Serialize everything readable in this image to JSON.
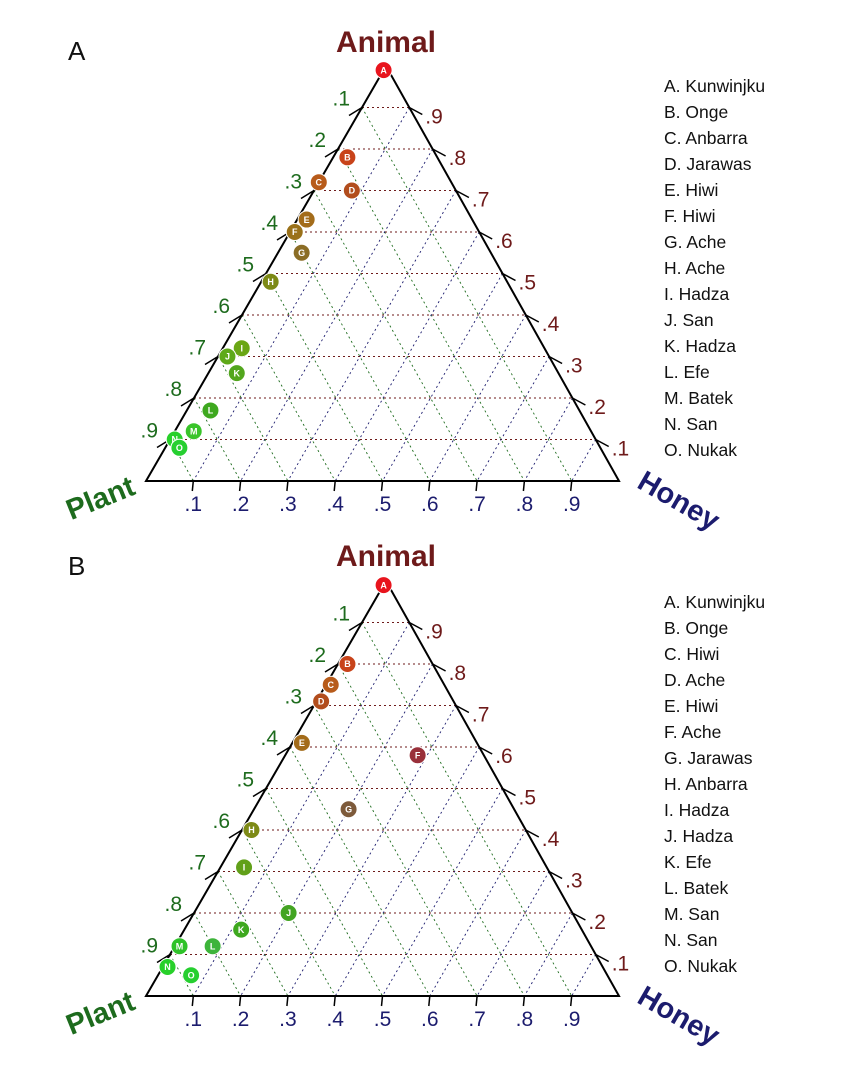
{
  "colors": {
    "animal": "#6e1a1a",
    "plant": "#1d6b1d",
    "honey": "#1c1c6e"
  },
  "chart_data": [
    {
      "type": "ternary-scatter",
      "panel": "A",
      "vertex_labels": {
        "top": "Animal",
        "left": "Plant",
        "right": "Honey"
      },
      "axes": {
        "animal_ticks": [
          ".9",
          ".8",
          ".7",
          ".6",
          ".5",
          ".4",
          ".3",
          ".2",
          ".1"
        ],
        "plant_ticks": [
          ".1",
          ".2",
          ".3",
          ".4",
          ".5",
          ".6",
          ".7",
          ".8",
          ".9"
        ],
        "honey_ticks": [
          ".1",
          ".2",
          ".3",
          ".4",
          ".5",
          ".6",
          ".7",
          ".8",
          ".9"
        ]
      },
      "grid": true,
      "points": [
        {
          "id": "A",
          "name": "Kunwinjku",
          "animal": 0.99,
          "plant": 0.01,
          "honey": 0.0,
          "color": "#e8141d"
        },
        {
          "id": "B",
          "name": "Onge",
          "animal": 0.78,
          "plant": 0.19,
          "honey": 0.03,
          "color": "#c8431a"
        },
        {
          "id": "C",
          "name": "Anbarra",
          "animal": 0.72,
          "plant": 0.28,
          "honey": 0.0,
          "color": "#b75b1a"
        },
        {
          "id": "D",
          "name": "Jarawas",
          "animal": 0.7,
          "plant": 0.22,
          "honey": 0.08,
          "color": "#b24d1d"
        },
        {
          "id": "E",
          "name": "Hiwi",
          "animal": 0.63,
          "plant": 0.35,
          "honey": 0.02,
          "color": "#a36c1a"
        },
        {
          "id": "F",
          "name": "Hiwi",
          "animal": 0.6,
          "plant": 0.39,
          "honey": 0.01,
          "color": "#9a7119"
        },
        {
          "id": "G",
          "name": "Ache",
          "animal": 0.55,
          "plant": 0.4,
          "honey": 0.05,
          "color": "#8b6d25"
        },
        {
          "id": "H",
          "name": "Ache",
          "animal": 0.48,
          "plant": 0.5,
          "honey": 0.02,
          "color": "#7d8a16"
        },
        {
          "id": "I",
          "name": "Hadza",
          "animal": 0.32,
          "plant": 0.64,
          "honey": 0.04,
          "color": "#6aa614"
        },
        {
          "id": "J",
          "name": "San",
          "animal": 0.3,
          "plant": 0.68,
          "honey": 0.02,
          "color": "#5ea918"
        },
        {
          "id": "K",
          "name": "Hadza",
          "animal": 0.26,
          "plant": 0.68,
          "honey": 0.06,
          "color": "#52a61d"
        },
        {
          "id": "L",
          "name": "Efe",
          "animal": 0.17,
          "plant": 0.78,
          "honey": 0.05,
          "color": "#3ea81f"
        },
        {
          "id": "M",
          "name": "Batek",
          "animal": 0.12,
          "plant": 0.84,
          "honey": 0.04,
          "color": "#39c42a"
        },
        {
          "id": "N",
          "name": "San",
          "animal": 0.1,
          "plant": 0.89,
          "honey": 0.01,
          "color": "#28d02a"
        },
        {
          "id": "O",
          "name": "Nukak",
          "animal": 0.08,
          "plant": 0.89,
          "honey": 0.03,
          "color": "#26cf30"
        }
      ]
    },
    {
      "type": "ternary-scatter",
      "panel": "B",
      "vertex_labels": {
        "top": "Animal",
        "left": "Plant",
        "right": "Honey"
      },
      "axes": {
        "animal_ticks": [
          ".9",
          ".8",
          ".7",
          ".6",
          ".5",
          ".4",
          ".3",
          ".2",
          ".1"
        ],
        "plant_ticks": [
          ".1",
          ".2",
          ".3",
          ".4",
          ".5",
          ".6",
          ".7",
          ".8",
          ".9"
        ],
        "honey_ticks": [
          ".1",
          ".2",
          ".3",
          ".4",
          ".5",
          ".6",
          ".7",
          ".8",
          ".9"
        ]
      },
      "grid": true,
      "points": [
        {
          "id": "A",
          "name": "Kunwinjku",
          "animal": 0.99,
          "plant": 0.01,
          "honey": 0.0,
          "color": "#e8141d"
        },
        {
          "id": "B",
          "name": "Onge",
          "animal": 0.8,
          "plant": 0.18,
          "honey": 0.02,
          "color": "#c8431a"
        },
        {
          "id": "C",
          "name": "Hiwi",
          "animal": 0.75,
          "plant": 0.24,
          "honey": 0.01,
          "color": "#b75b1a"
        },
        {
          "id": "D",
          "name": "Ache",
          "animal": 0.71,
          "plant": 0.28,
          "honey": 0.01,
          "color": "#b24d1d"
        },
        {
          "id": "E",
          "name": "Hiwi",
          "animal": 0.61,
          "plant": 0.37,
          "honey": 0.02,
          "color": "#a36c1a"
        },
        {
          "id": "F",
          "name": "Ache",
          "animal": 0.58,
          "plant": 0.14,
          "honey": 0.28,
          "color": "#99303a"
        },
        {
          "id": "G",
          "name": "Jarawas",
          "animal": 0.45,
          "plant": 0.35,
          "honey": 0.2,
          "color": "#7d5a3a"
        },
        {
          "id": "H",
          "name": "Anbarra",
          "animal": 0.4,
          "plant": 0.58,
          "honey": 0.02,
          "color": "#7d8a16"
        },
        {
          "id": "I",
          "name": "Hadza",
          "animal": 0.31,
          "plant": 0.64,
          "honey": 0.05,
          "color": "#61a019"
        },
        {
          "id": "J",
          "name": "Hadza",
          "animal": 0.2,
          "plant": 0.6,
          "honey": 0.2,
          "color": "#43a422"
        },
        {
          "id": "K",
          "name": "Efe",
          "animal": 0.16,
          "plant": 0.72,
          "honey": 0.12,
          "color": "#3ea81f"
        },
        {
          "id": "L",
          "name": "Batek",
          "animal": 0.12,
          "plant": 0.8,
          "honey": 0.08,
          "color": "#3db43a"
        },
        {
          "id": "M",
          "name": "San",
          "animal": 0.12,
          "plant": 0.87,
          "honey": 0.01,
          "color": "#2fc229"
        },
        {
          "id": "N",
          "name": "San",
          "animal": 0.07,
          "plant": 0.92,
          "honey": 0.01,
          "color": "#28d02a"
        },
        {
          "id": "O",
          "name": "Nukak",
          "animal": 0.05,
          "plant": 0.88,
          "honey": 0.07,
          "color": "#26cf30"
        }
      ]
    }
  ]
}
